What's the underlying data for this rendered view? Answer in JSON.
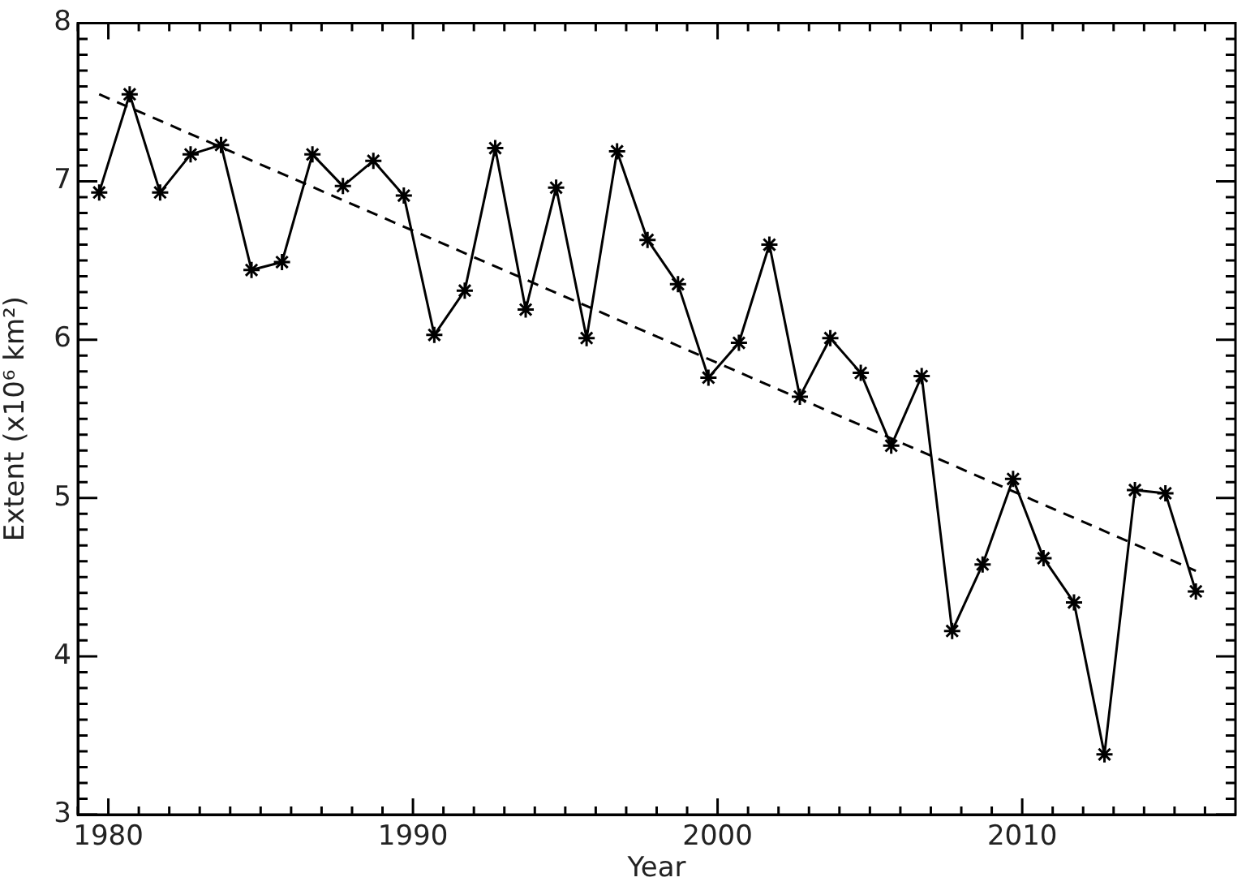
{
  "chart_data": {
    "type": "line",
    "xlabel": "Year",
    "ylabel": "Extent (x10⁶ km²)",
    "xlim": [
      1979,
      2017
    ],
    "ylim": [
      3,
      8
    ],
    "xticks": [
      {
        "value": 1979,
        "label": null
      },
      {
        "value": 1980,
        "label": "1980"
      },
      {
        "value": 1981,
        "label": null
      },
      {
        "value": 1982,
        "label": null
      },
      {
        "value": 1983,
        "label": null
      },
      {
        "value": 1984,
        "label": null
      },
      {
        "value": 1985,
        "label": null
      },
      {
        "value": 1986,
        "label": null
      },
      {
        "value": 1987,
        "label": null
      },
      {
        "value": 1988,
        "label": null
      },
      {
        "value": 1989,
        "label": null
      },
      {
        "value": 1990,
        "label": "1990"
      },
      {
        "value": 1991,
        "label": null
      },
      {
        "value": 1992,
        "label": null
      },
      {
        "value": 1993,
        "label": null
      },
      {
        "value": 1994,
        "label": null
      },
      {
        "value": 1995,
        "label": null
      },
      {
        "value": 1996,
        "label": null
      },
      {
        "value": 1997,
        "label": null
      },
      {
        "value": 1998,
        "label": null
      },
      {
        "value": 1999,
        "label": null
      },
      {
        "value": 2000,
        "label": "2000"
      },
      {
        "value": 2001,
        "label": null
      },
      {
        "value": 2002,
        "label": null
      },
      {
        "value": 2003,
        "label": null
      },
      {
        "value": 2004,
        "label": null
      },
      {
        "value": 2005,
        "label": null
      },
      {
        "value": 2006,
        "label": null
      },
      {
        "value": 2007,
        "label": null
      },
      {
        "value": 2008,
        "label": null
      },
      {
        "value": 2009,
        "label": null
      },
      {
        "value": 2010,
        "label": "2010"
      },
      {
        "value": 2011,
        "label": null
      },
      {
        "value": 2012,
        "label": null
      },
      {
        "value": 2013,
        "label": null
      },
      {
        "value": 2014,
        "label": null
      },
      {
        "value": 2015,
        "label": null
      },
      {
        "value": 2016,
        "label": null
      }
    ],
    "yticks": [
      3,
      {
        "value": 3.1,
        "label": null
      },
      {
        "value": 3.2,
        "label": null
      },
      {
        "value": 3.3,
        "label": null
      },
      {
        "value": 3.4,
        "label": null
      },
      {
        "value": 3.5,
        "label": null
      },
      {
        "value": 3.6,
        "label": null
      },
      {
        "value": 3.7,
        "label": null
      },
      {
        "value": 3.8,
        "label": null
      },
      {
        "value": 3.9,
        "label": null
      },
      4,
      {
        "value": 4.1,
        "label": null
      },
      {
        "value": 4.2,
        "label": null
      },
      {
        "value": 4.3,
        "label": null
      },
      {
        "value": 4.4,
        "label": null
      },
      {
        "value": 4.5,
        "label": null
      },
      {
        "value": 4.6,
        "label": null
      },
      {
        "value": 4.7,
        "label": null
      },
      {
        "value": 4.8,
        "label": null
      },
      {
        "value": 4.9,
        "label": null
      },
      5,
      {
        "value": 5.1,
        "label": null
      },
      {
        "value": 5.2,
        "label": null
      },
      {
        "value": 5.3,
        "label": null
      },
      {
        "value": 5.4,
        "label": null
      },
      {
        "value": 5.5,
        "label": null
      },
      {
        "value": 5.6,
        "label": null
      },
      {
        "value": 5.7,
        "label": null
      },
      {
        "value": 5.8,
        "label": null
      },
      {
        "value": 5.9,
        "label": null
      },
      6,
      {
        "value": 6.1,
        "label": null
      },
      {
        "value": 6.2,
        "label": null
      },
      {
        "value": 6.3,
        "label": null
      },
      {
        "value": 6.4,
        "label": null
      },
      {
        "value": 6.5,
        "label": null
      },
      {
        "value": 6.6,
        "label": null
      },
      {
        "value": 6.7,
        "label": null
      },
      {
        "value": 6.8,
        "label": null
      },
      {
        "value": 6.9,
        "label": null
      },
      7,
      {
        "value": 7.1,
        "label": null
      },
      {
        "value": 7.2,
        "label": null
      },
      {
        "value": 7.3,
        "label": null
      },
      {
        "value": 7.4,
        "label": null
      },
      {
        "value": 7.5,
        "label": null
      },
      {
        "value": 7.6,
        "label": null
      },
      {
        "value": 7.7,
        "label": null
      },
      {
        "value": 7.8,
        "label": null
      },
      {
        "value": 7.9,
        "label": null
      },
      8
    ],
    "grid": false,
    "legend": false,
    "series": [
      {
        "color": "#000000",
        "marker": "cross",
        "line_style": "solid",
        "x": [
          1979.7,
          1980.7,
          1981.7,
          1982.7,
          1983.7,
          1984.7,
          1985.7,
          1986.7,
          1987.7,
          1988.7,
          1989.7,
          1990.7,
          1991.7,
          1992.7,
          1993.7,
          1994.7,
          1995.7,
          1996.7,
          1997.7,
          1998.7,
          1999.7,
          2000.7,
          2001.7,
          2002.7,
          2003.7,
          2004.7,
          2005.7,
          2006.7,
          2007.7,
          2008.7,
          2009.7,
          2010.7,
          2011.7,
          2012.7,
          2013.7,
          2014.7,
          2015.7
        ],
        "values": [
          6.93,
          7.55,
          6.93,
          7.17,
          7.23,
          6.44,
          6.49,
          7.17,
          6.97,
          7.13,
          6.91,
          6.03,
          6.31,
          7.21,
          6.19,
          6.96,
          6.01,
          7.19,
          6.63,
          6.35,
          5.76,
          5.98,
          6.6,
          5.64,
          6.01,
          5.79,
          5.33,
          5.77,
          4.16,
          4.58,
          5.12,
          4.62,
          4.34,
          3.38,
          5.05,
          5.03,
          4.41
        ]
      },
      {
        "type": "line",
        "color": "#000000",
        "marker": "none",
        "line_style": "dashed",
        "x": [
          1979.7,
          2015.7
        ],
        "values": [
          7.55,
          4.54
        ]
      }
    ]
  }
}
